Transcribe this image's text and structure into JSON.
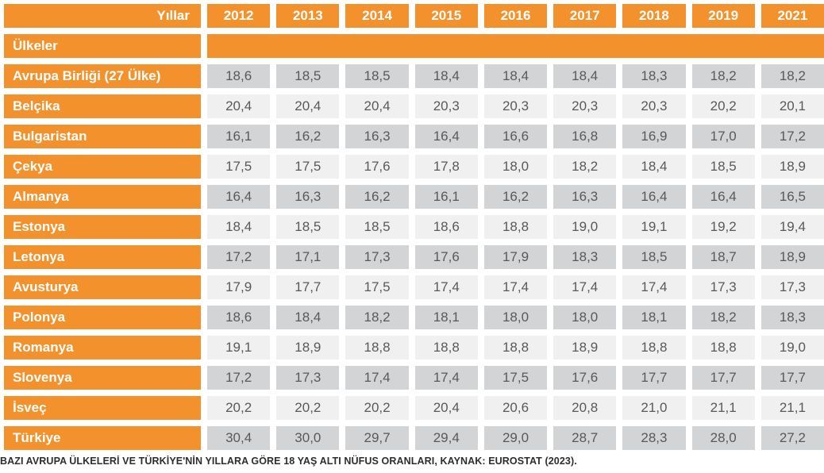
{
  "colors": {
    "accent": "#F3912D",
    "row_dark": "#D3D4D6",
    "row_light": "#F0F0F1"
  },
  "chart_data": {
    "type": "table",
    "corner_label": "Yıllar",
    "group_label": "Ülkeler",
    "columns": [
      "2012",
      "2013",
      "2014",
      "2015",
      "2016",
      "2017",
      "2018",
      "2019",
      "2021"
    ],
    "rows": [
      {
        "country": "Avrupa Birliği (27 Ülke)",
        "values": [
          "18,6",
          "18,5",
          "18,5",
          "18,4",
          "18,4",
          "18,4",
          "18,3",
          "18,2",
          "18,2"
        ]
      },
      {
        "country": "Belçika",
        "values": [
          "20,4",
          "20,4",
          "20,4",
          "20,3",
          "20,3",
          "20,3",
          "20,3",
          "20,2",
          "20,1"
        ]
      },
      {
        "country": "Bulgaristan",
        "values": [
          "16,1",
          "16,2",
          "16,3",
          "16,4",
          "16,6",
          "16,8",
          "16,9",
          "17,0",
          "17,2"
        ]
      },
      {
        "country": "Çekya",
        "values": [
          "17,5",
          "17,5",
          "17,6",
          "17,8",
          "18,0",
          "18,2",
          "18,4",
          "18,5",
          "18,9"
        ]
      },
      {
        "country": "Almanya",
        "values": [
          "16,4",
          "16,3",
          "16,2",
          "16,1",
          "16,2",
          "16,3",
          "16,4",
          "16,4",
          "16,5"
        ]
      },
      {
        "country": "Estonya",
        "values": [
          "18,4",
          "18,5",
          "18,5",
          "18,6",
          "18,8",
          "19,0",
          "19,1",
          "19,2",
          "19,4"
        ]
      },
      {
        "country": "Letonya",
        "values": [
          "17,2",
          "17,1",
          "17,3",
          "17,6",
          "17,9",
          "18,3",
          "18,5",
          "18,7",
          "18,9"
        ]
      },
      {
        "country": "Avusturya",
        "values": [
          "17,9",
          "17,7",
          "17,5",
          "17,4",
          "17,4",
          "17,4",
          "17,4",
          "17,3",
          "17,3"
        ]
      },
      {
        "country": "Polonya",
        "values": [
          "18,6",
          "18,4",
          "18,2",
          "18,1",
          "18,0",
          "18,0",
          "18,1",
          "18,2",
          "18,3"
        ]
      },
      {
        "country": "Romanya",
        "values": [
          "19,1",
          "18,9",
          "18,8",
          "18,8",
          "18,8",
          "18,9",
          "18,8",
          "18,8",
          "19,0"
        ]
      },
      {
        "country": "Slovenya",
        "values": [
          "17,2",
          "17,3",
          "17,4",
          "17,4",
          "17,5",
          "17,6",
          "17,7",
          "17,7",
          "17,7"
        ]
      },
      {
        "country": "İsveç",
        "values": [
          "20,2",
          "20,2",
          "20,2",
          "20,4",
          "20,6",
          "20,8",
          "21,0",
          "21,1",
          "21,1"
        ]
      },
      {
        "country": "Türkiye",
        "values": [
          "30,4",
          "30,0",
          "29,7",
          "29,4",
          "29,0",
          "28,7",
          "28,3",
          "28,0",
          "27,2"
        ]
      }
    ],
    "caption": "BAZI AVRUPA ÜLKELERİ VE TÜRKİYE'NİN YILLARA GÖRE 18 YAŞ ALTI NÜFUS ORANLARI, KAYNAK: EUROSTAT (2023)."
  }
}
